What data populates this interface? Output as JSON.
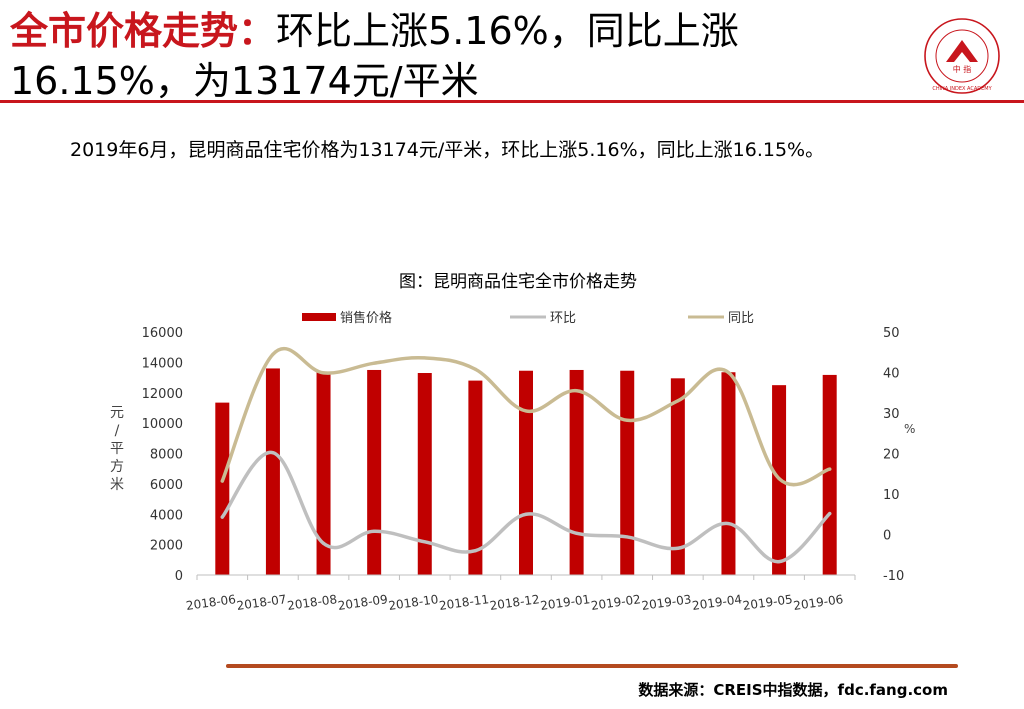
{
  "header": {
    "title_highlight": "全市价格走势：",
    "title_line1_rest": "环比上涨5.16%，同比上涨",
    "title_line2": "16.15%，为13174元/平米",
    "accent": "#c8161d"
  },
  "summary": "2019年6月，昆明商品住宅价格为13174元/平米，环比上涨5.16%，同比上涨16.15%。",
  "logo": {
    "text": "中国指数研究院",
    "center": "中 指",
    "english": "CHINA INDEX ACADEMY"
  },
  "source": "数据来源：CREIS中指数据，fdc.fang.com",
  "chart_data": {
    "type": "bar",
    "title": "图：昆明商品住宅全市价格走势",
    "categories": [
      "2018-06",
      "2018-07",
      "2018-08",
      "2018-09",
      "2018-10",
      "2018-11",
      "2018-12",
      "2019-01",
      "2019-02",
      "2019-03",
      "2019-04",
      "2019-05",
      "2019-06"
    ],
    "ylabel": "元/平方米",
    "ylim": [
      0,
      16000
    ],
    "yticks": [
      0,
      2000,
      4000,
      6000,
      8000,
      10000,
      12000,
      14000,
      16000
    ],
    "y2label": "%",
    "y2lim": [
      -10,
      50
    ],
    "y2ticks": [
      -10,
      0,
      10,
      20,
      30,
      40,
      50
    ],
    "legend_position": "top",
    "grid": false,
    "series": [
      {
        "name": "销售价格",
        "kind": "bar",
        "axis": "left",
        "color": "#c00000",
        "values": [
          11350,
          13600,
          13400,
          13500,
          13300,
          12800,
          13450,
          13500,
          13450,
          12950,
          13350,
          12500,
          13174
        ]
      },
      {
        "name": "环比",
        "kind": "line",
        "axis": "right",
        "color": "#bfbfbf",
        "values": [
          4.3,
          20.2,
          -2.2,
          0.8,
          -1.8,
          -4.0,
          5.0,
          0.3,
          -0.6,
          -3.4,
          2.7,
          -6.7,
          5.16
        ]
      },
      {
        "name": "同比",
        "kind": "line",
        "axis": "right",
        "color": "#c9bb93",
        "values": [
          13.2,
          44.5,
          39.9,
          42.3,
          43.6,
          40.8,
          30.5,
          35.5,
          28.2,
          33.0,
          40.0,
          13.8,
          16.15
        ]
      }
    ]
  }
}
